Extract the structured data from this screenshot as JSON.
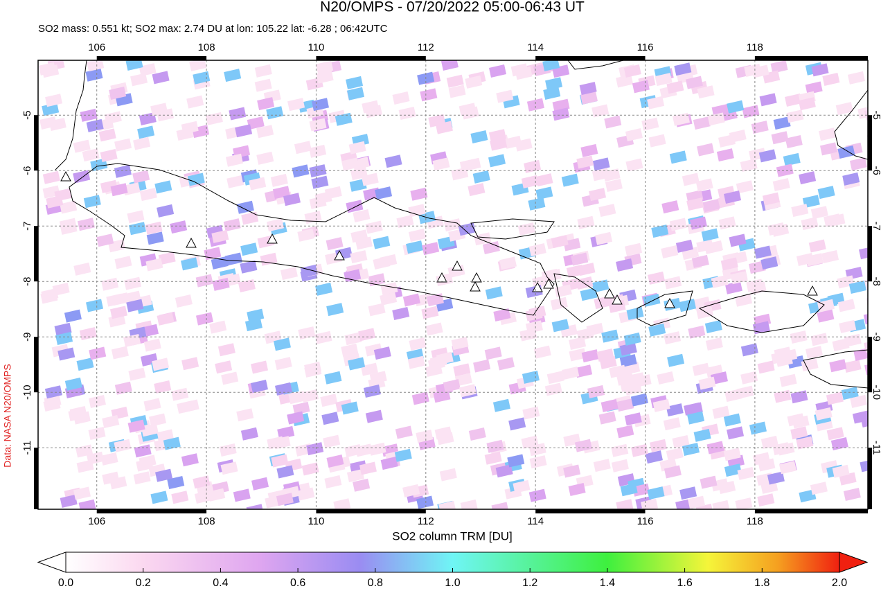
{
  "chart_data": {
    "type": "map",
    "title": "N20/OMPS - 07/20/2022 05:00-06:43 UT",
    "subtitle": "SO2 mass: 0.551 kt; SO2 max: 2.74 DU at lon: 105.22 lat: -6.28 ; 06:42UTC",
    "credit": "Data: NASA N20/OMPS",
    "xlim": [
      104.93,
      120.06
    ],
    "ylim": [
      -12.11,
      -4.01
    ],
    "xticks": [
      106,
      108,
      110,
      112,
      114,
      116,
      118
    ],
    "yticks": [
      -5,
      -6,
      -7,
      -8,
      -9,
      -10,
      -11
    ],
    "grid": true,
    "colorbar": {
      "label": "SO2 column TRM [DU]",
      "lim": [
        0,
        2
      ],
      "ticks": [
        {
          "value": 0,
          "label": "0.0"
        },
        {
          "value": 0.2,
          "label": "0.2"
        },
        {
          "value": 0.4,
          "label": "0.4"
        },
        {
          "value": 0.6,
          "label": "0.6"
        },
        {
          "value": 0.8,
          "label": "0.8"
        },
        {
          "value": 1,
          "label": "1.0"
        },
        {
          "value": 1.2,
          "label": "1.2"
        },
        {
          "value": 1.4,
          "label": "1.4"
        },
        {
          "value": 1.6,
          "label": "1.6"
        },
        {
          "value": 1.8,
          "label": "1.8"
        },
        {
          "value": 2,
          "label": "2.0"
        }
      ]
    }
  }
}
